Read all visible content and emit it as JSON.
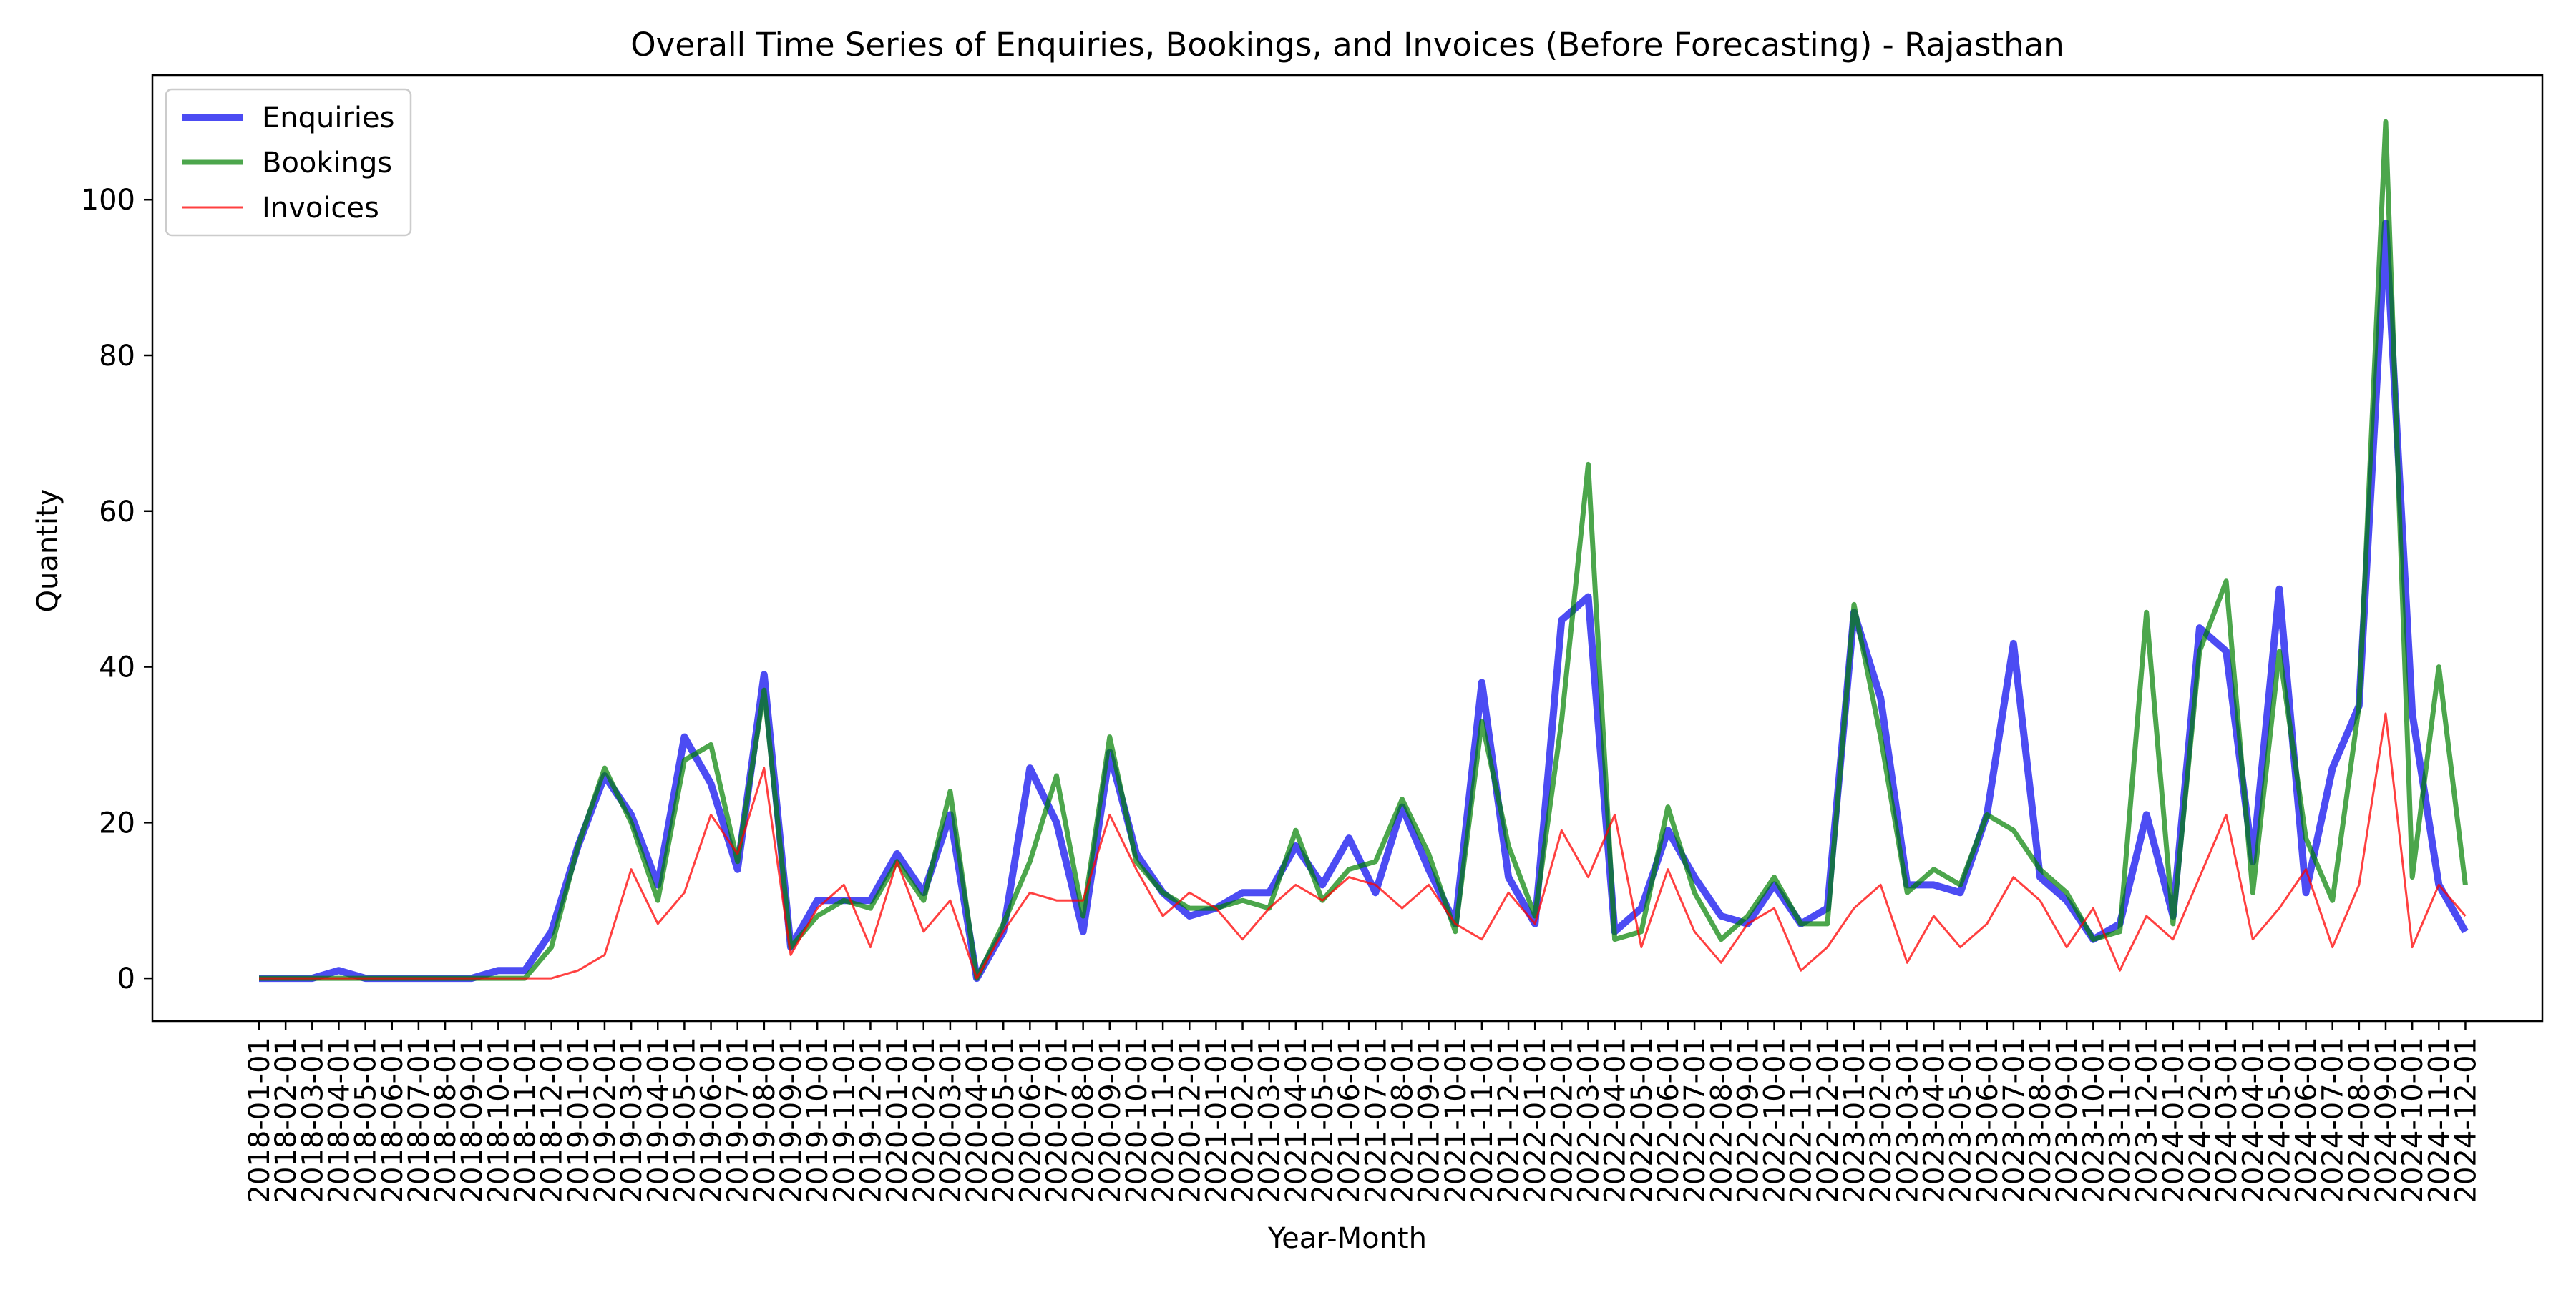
{
  "chart_data": {
    "type": "line",
    "title": "Overall Time Series of Enquiries, Bookings, and Invoices (Before Forecasting) - Rajasthan",
    "xlabel": "Year-Month",
    "ylabel": "Quantity",
    "ylim": [
      -5.5,
      116
    ],
    "yticks": [
      0,
      20,
      40,
      60,
      80,
      100
    ],
    "grid": false,
    "legend_position": "upper-left",
    "x": [
      "2018-01-01",
      "2018-02-01",
      "2018-03-01",
      "2018-04-01",
      "2018-05-01",
      "2018-06-01",
      "2018-07-01",
      "2018-08-01",
      "2018-09-01",
      "2018-10-01",
      "2018-11-01",
      "2018-12-01",
      "2019-01-01",
      "2019-02-01",
      "2019-03-01",
      "2019-04-01",
      "2019-05-01",
      "2019-06-01",
      "2019-07-01",
      "2019-08-01",
      "2019-09-01",
      "2019-10-01",
      "2019-11-01",
      "2019-12-01",
      "2020-01-01",
      "2020-02-01",
      "2020-03-01",
      "2020-04-01",
      "2020-05-01",
      "2020-06-01",
      "2020-07-01",
      "2020-08-01",
      "2020-09-01",
      "2020-10-01",
      "2020-11-01",
      "2020-12-01",
      "2021-01-01",
      "2021-02-01",
      "2021-03-01",
      "2021-04-01",
      "2021-05-01",
      "2021-06-01",
      "2021-07-01",
      "2021-08-01",
      "2021-09-01",
      "2021-10-01",
      "2021-11-01",
      "2021-12-01",
      "2022-01-01",
      "2022-02-01",
      "2022-03-01",
      "2022-04-01",
      "2022-05-01",
      "2022-06-01",
      "2022-07-01",
      "2022-08-01",
      "2022-09-01",
      "2022-10-01",
      "2022-11-01",
      "2022-12-01",
      "2023-01-01",
      "2023-02-01",
      "2023-03-01",
      "2023-04-01",
      "2023-05-01",
      "2023-06-01",
      "2023-07-01",
      "2023-08-01",
      "2023-09-01",
      "2023-10-01",
      "2023-11-01",
      "2023-12-01",
      "2024-01-01",
      "2024-02-01",
      "2024-03-01",
      "2024-04-01",
      "2024-05-01",
      "2024-06-01",
      "2024-07-01",
      "2024-08-01",
      "2024-09-01",
      "2024-10-01",
      "2024-11-01",
      "2024-12-01"
    ],
    "series": [
      {
        "name": "Enquiries",
        "color": "#0000ee",
        "values": [
          0,
          0,
          0,
          1,
          0,
          0,
          0,
          0,
          0,
          1,
          1,
          6,
          17,
          26,
          21,
          12,
          31,
          25,
          14,
          39,
          4,
          10,
          10,
          10,
          16,
          11,
          21,
          0,
          6,
          27,
          20,
          6,
          29,
          16,
          11,
          8,
          9,
          11,
          11,
          17,
          12,
          18,
          11,
          22,
          14,
          7,
          38,
          13,
          7,
          46,
          49,
          6,
          9,
          19,
          13,
          8,
          7,
          12,
          7,
          9,
          47,
          36,
          12,
          12,
          11,
          21,
          43,
          13,
          10,
          5,
          7,
          21,
          8,
          45,
          42,
          15,
          50,
          11,
          27,
          35,
          97,
          34,
          12,
          6
        ]
      },
      {
        "name": "Bookings",
        "color": "#008000",
        "values": [
          0,
          0,
          0,
          0,
          0,
          0,
          0,
          0,
          0,
          0,
          0,
          4,
          17,
          27,
          20,
          10,
          28,
          30,
          15,
          37,
          4,
          8,
          10,
          9,
          15,
          10,
          24,
          0,
          7,
          15,
          26,
          8,
          31,
          15,
          11,
          9,
          9,
          10,
          9,
          19,
          10,
          14,
          15,
          23,
          16,
          6,
          33,
          17,
          8,
          33,
          66,
          5,
          6,
          22,
          11,
          5,
          8,
          13,
          7,
          7,
          48,
          31,
          11,
          14,
          12,
          21,
          19,
          14,
          11,
          5,
          6,
          47,
          7,
          42,
          51,
          11,
          42,
          18,
          10,
          35,
          110,
          13,
          40,
          12
        ]
      },
      {
        "name": "Invoices",
        "color": "#ff0000",
        "values": [
          0,
          0,
          0,
          0,
          0,
          0,
          0,
          0,
          0,
          0,
          0,
          0,
          1,
          3,
          14,
          7,
          11,
          21,
          16,
          27,
          3,
          9,
          12,
          4,
          15,
          6,
          10,
          0,
          6,
          11,
          10,
          10,
          21,
          14,
          8,
          11,
          9,
          5,
          9,
          12,
          10,
          13,
          12,
          9,
          12,
          7,
          5,
          11,
          7,
          19,
          13,
          21,
          4,
          14,
          6,
          2,
          7,
          9,
          1,
          4,
          9,
          12,
          2,
          8,
          4,
          7,
          13,
          10,
          4,
          9,
          1,
          8,
          5,
          13,
          21,
          5,
          9,
          14,
          4,
          12,
          34,
          4,
          12,
          8
        ]
      }
    ]
  }
}
